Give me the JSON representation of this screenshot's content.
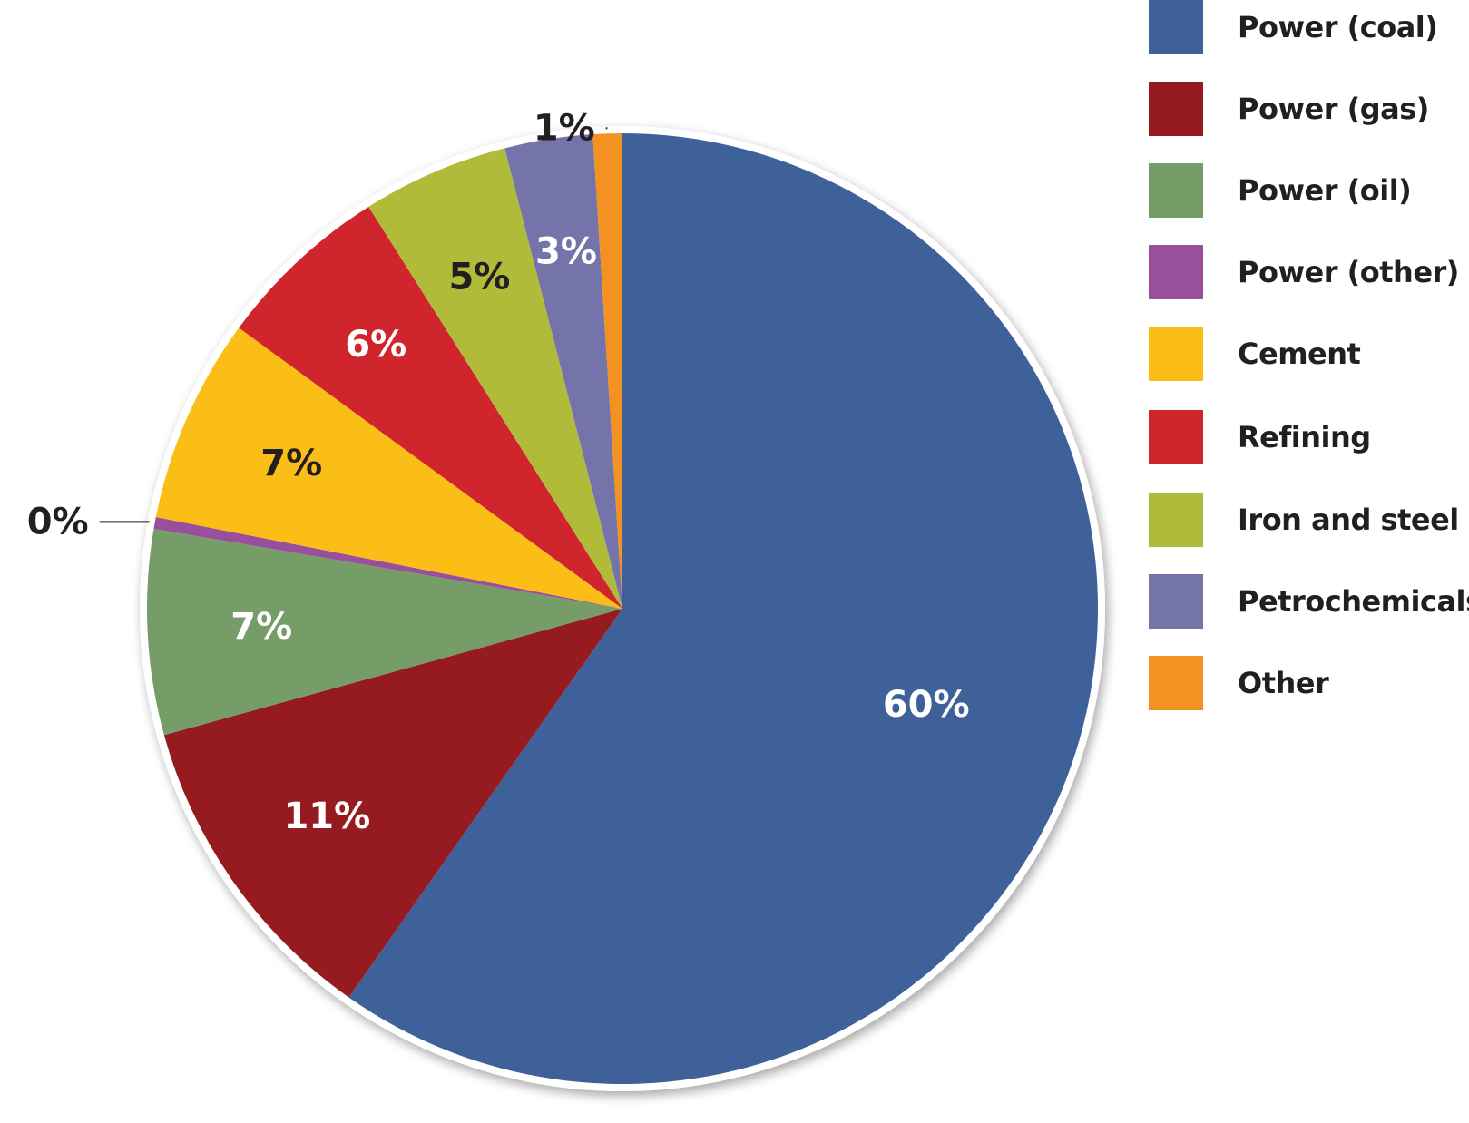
{
  "chart_data": {
    "type": "pie",
    "slices": [
      {
        "name": "Power (coal)",
        "value": 60,
        "label": "60%",
        "color": "#3e6199",
        "label_color": "#ffffff"
      },
      {
        "name": "Power (gas)",
        "value": 11,
        "label": "11%",
        "color": "#961b21",
        "label_color": "#ffffff"
      },
      {
        "name": "Power (oil)",
        "value": 7,
        "label": "7%",
        "color": "#769c68",
        "label_color": "#ffffff"
      },
      {
        "name": "Power (other)",
        "value": 0.4,
        "label": "0%",
        "color": "#98509d",
        "label_color": "#231f20"
      },
      {
        "name": "Cement",
        "value": 7,
        "label": "7%",
        "color": "#fbbe17",
        "label_color": "#231f20"
      },
      {
        "name": "Refining",
        "value": 6,
        "label": "6%",
        "color": "#d1252d",
        "label_color": "#ffffff"
      },
      {
        "name": "Iron and steel",
        "value": 5,
        "label": "5%",
        "color": "#b1bb3a",
        "label_color": "#231f20"
      },
      {
        "name": "Petrochemicals",
        "value": 3,
        "label": "3%",
        "color": "#7474aa",
        "label_color": "#ffffff"
      },
      {
        "name": "Other",
        "value": 1,
        "label": "1%",
        "color": "#f39220",
        "label_color": "#231f20"
      }
    ],
    "start": "top",
    "direction": "clockwise",
    "legend_position": "right"
  }
}
